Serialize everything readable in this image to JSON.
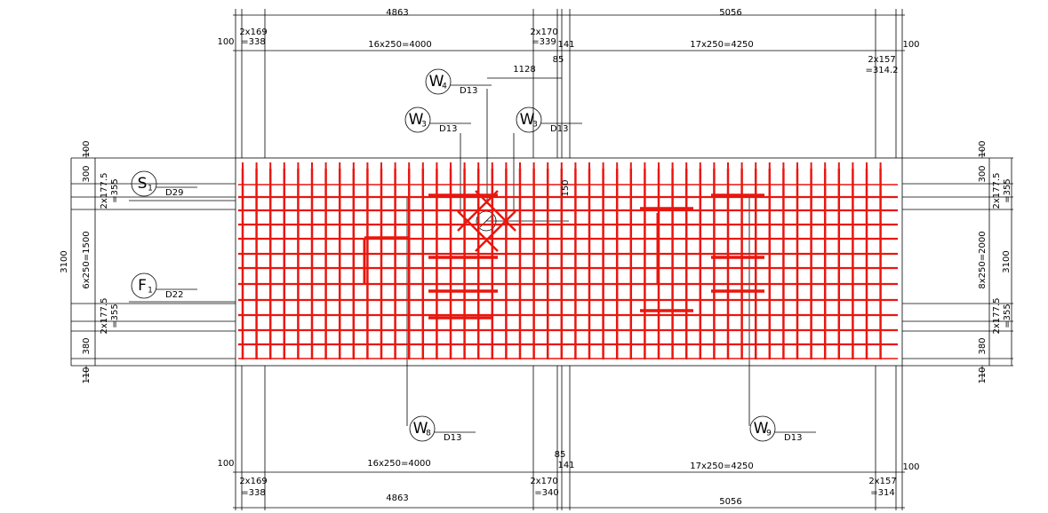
{
  "top_dims": [
    "4863",
    "5056",
    "100",
    "2x169",
    "=338",
    "16x250=4000",
    "2x170",
    "=339",
    "141",
    "85",
    "17x250=4250",
    "100",
    "2x157",
    "=314.2",
    "1128",
    "150"
  ],
  "bottom_dims": [
    "100",
    "16x250=4000",
    "85",
    "141",
    "17x250=4250",
    "100",
    "2x169",
    "2x170",
    "2x157",
    "=338",
    "=340",
    "=314",
    "4863",
    "5056"
  ],
  "left_dims": [
    "100",
    "300",
    "2x177.5",
    "=355",
    "3100",
    "6x250=1500",
    "2x177.5",
    "=355",
    "380",
    "110"
  ],
  "right_dims": [
    "100",
    "300",
    "2x177.5",
    "=355",
    "3100",
    "8x250=2000",
    "2x177.5",
    "=355",
    "380",
    "110"
  ],
  "callouts": [
    {
      "letter": "W",
      "sub": "4",
      "bar": "D13"
    },
    {
      "letter": "W",
      "sub": "3",
      "bar": "D13"
    },
    {
      "letter": "W",
      "sub": "3",
      "bar": "D13"
    },
    {
      "letter": "S",
      "sub": "1",
      "bar": "D29"
    },
    {
      "letter": "F",
      "sub": "1",
      "bar": "D22"
    },
    {
      "letter": "W",
      "sub": "8",
      "bar": "D13"
    },
    {
      "letter": "W",
      "sub": "9",
      "bar": "D13"
    }
  ]
}
